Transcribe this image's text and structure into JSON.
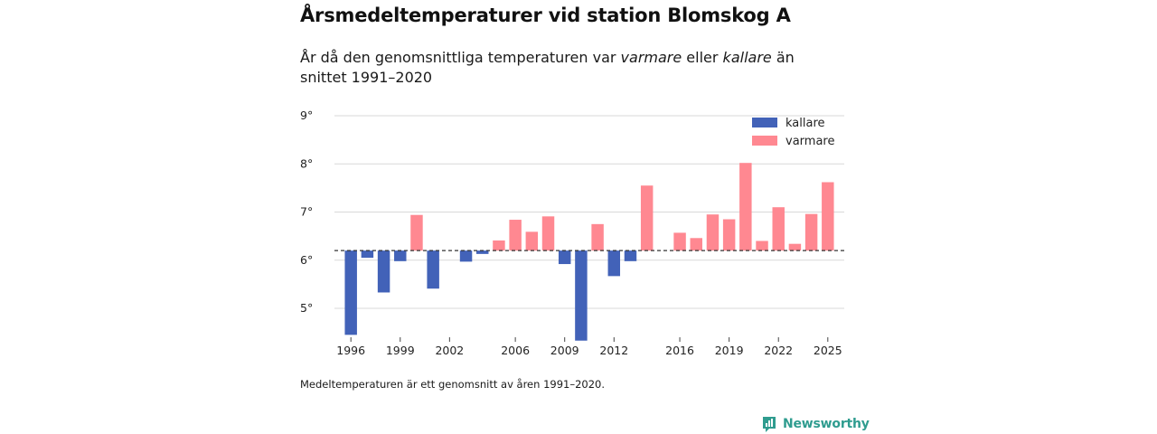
{
  "header": {
    "title": "Årsmedeltemperaturer vid station Blomskog A",
    "subtitle_prefix": "År då den genomsnittliga temperaturen var ",
    "subtitle_warm": "varmare",
    "subtitle_mid": " eller ",
    "subtitle_cold": "kallare",
    "subtitle_suffix": " än snittet 1991–2020"
  },
  "footnote": "Medeltemperaturen är ett genomsnitt av åren 1991–2020.",
  "brand": {
    "name": "Newsworthy",
    "color": "#2f9c8f",
    "icon": "newsworthy-logo-icon"
  },
  "colors": {
    "kallare": "#4262b8",
    "varmare": "#ff8891",
    "grid": "#d9d9d9",
    "baseline": "#333333"
  },
  "chart_data": {
    "type": "bar",
    "title": "Årsmedeltemperaturer vid station Blomskog A",
    "xlabel": "",
    "ylabel": "",
    "baseline": 6.2,
    "baseline_style": "dashed",
    "ylim": [
      4.4,
      9
    ],
    "yticks": [
      5,
      6,
      7,
      8,
      9
    ],
    "ytick_suffix": "°",
    "xlim": [
      1995,
      2026
    ],
    "xticks": [
      1996,
      1999,
      2002,
      2006,
      2009,
      2012,
      2016,
      2019,
      2022,
      2025
    ],
    "grid": true,
    "legend_position": "top-right",
    "series": [
      {
        "name": "kallare",
        "color": "#4262b8"
      },
      {
        "name": "varmare",
        "color": "#ff8891"
      }
    ],
    "x": [
      1996,
      1997,
      1998,
      1999,
      2000,
      2001,
      2002,
      2003,
      2004,
      2005,
      2006,
      2007,
      2008,
      2009,
      2010,
      2011,
      2012,
      2013,
      2014,
      2015,
      2016,
      2017,
      2018,
      2019,
      2020,
      2021,
      2022,
      2023,
      2024,
      2025
    ],
    "values": [
      4.45,
      6.05,
      5.33,
      5.98,
      6.94,
      5.41,
      6.2,
      5.97,
      6.13,
      6.41,
      6.84,
      6.59,
      6.91,
      5.92,
      4.33,
      6.75,
      5.67,
      5.98,
      7.55,
      6.2,
      6.57,
      6.46,
      6.95,
      6.85,
      8.02,
      6.4,
      7.1,
      6.34,
      6.96,
      7.62
    ]
  }
}
